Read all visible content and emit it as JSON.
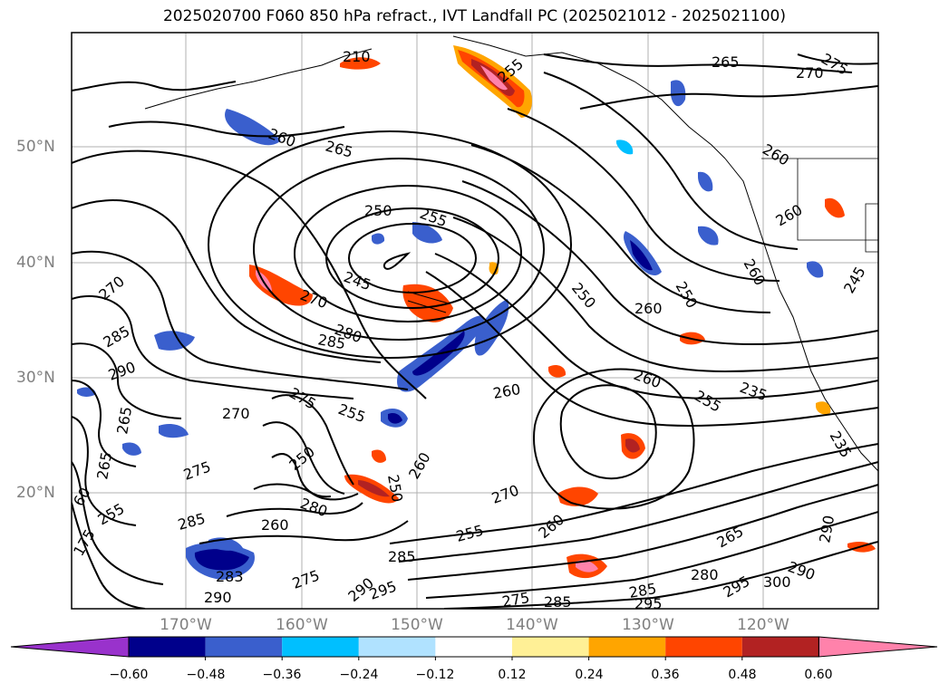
{
  "title": "2025020700 F060 850 hPa refract., IVT Landfall PC (2025021012 - 2025021100)",
  "map": {
    "lat_labels": [
      "50°N",
      "40°N",
      "30°N",
      "20°N"
    ],
    "lon_labels": [
      "170°W",
      "160°W",
      "150°W",
      "140°W",
      "130°W",
      "120°W"
    ],
    "contour_labels": [
      "210",
      "255",
      "265",
      "275",
      "270",
      "260",
      "265",
      "250",
      "255",
      "245",
      "270",
      "270",
      "280",
      "285",
      "285",
      "290",
      "275",
      "255",
      "260",
      "260",
      "250",
      "260",
      "250",
      "260",
      "255",
      "235",
      "235",
      "270",
      "275",
      "250",
      "250",
      "260",
      "270",
      "285",
      "260",
      "280",
      "255",
      "260",
      "285",
      "283",
      "290",
      "275",
      "290",
      "295",
      "275",
      "285",
      "285",
      "295",
      "265",
      "280",
      "295",
      "300",
      "290",
      "290",
      "255",
      "175",
      "60",
      "265",
      "265",
      "260",
      "260",
      "245"
    ]
  },
  "colorbar": {
    "ticks": [
      "−0.60",
      "−0.48",
      "−0.36",
      "−0.24",
      "−0.12",
      "0.12",
      "0.24",
      "0.36",
      "0.48",
      "0.60"
    ],
    "colors": [
      "#9932cc",
      "#00008b",
      "#3a5fcd",
      "#00bfff",
      "#b0e2ff",
      "#ffffff",
      "#fff096",
      "#ffa500",
      "#ff4500",
      "#b22222",
      "#ff82ab"
    ]
  }
}
